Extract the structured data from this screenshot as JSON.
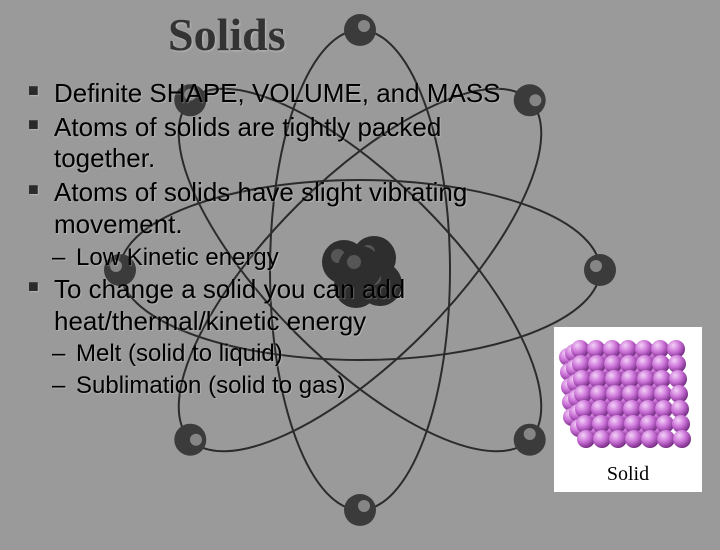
{
  "title": "Solids",
  "bullets": {
    "b1": "Definite SHAPE, VOLUME, and MASS",
    "b2": "Atoms of solids are tightly packed together.",
    "b3": "Atoms of solids have slight vibrating movement.",
    "sub1": "Low Kinetic energy",
    "b4": "To change a solid you can add heat/thermal/kinetic energy",
    "sub2": "Melt (solid to liquid)",
    "sub3": "Sublimation (solid to gas)"
  },
  "figure": {
    "caption": "Solid",
    "sphere_color": "#c96fd6",
    "sphere_highlight": "#f4d0f8",
    "sphere_shadow": "#7a3088",
    "background": "#ffffff"
  },
  "atom_bg": {
    "orbit_color": "#2b2b2b",
    "electron_small_fill": "#3b3b3b",
    "electron_small_highlight": "#b8b8b8",
    "nucleus_fill": "#2e2e2e",
    "nucleus_highlight": "#727272"
  }
}
